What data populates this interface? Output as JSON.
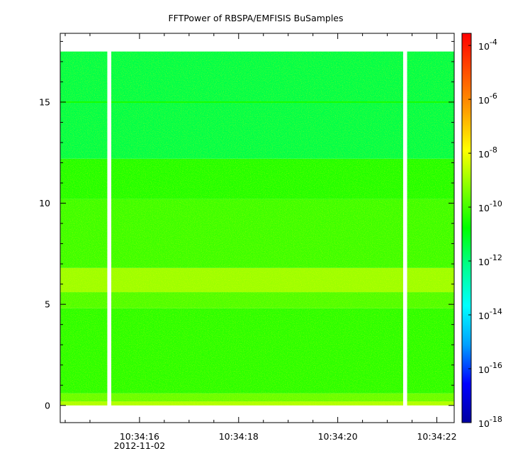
{
  "chart_data": {
    "type": "heatmap",
    "title": "FFTPower of RBSPA/EMFISIS  BuSamples",
    "xlabel": "",
    "ylabel": "",
    "x": {
      "range": [
        "10:34:14.40",
        "10:34:22.35"
      ],
      "major_ticks": [
        "10:34:16",
        "10:34:18",
        "10:34:20",
        "10:34:22"
      ],
      "minor_ticks": [
        "10:34:14.5",
        "10:34:15",
        "10:34:16.5",
        "10:34:17",
        "10:34:17.5",
        "10:34:18.5",
        "10:34:19",
        "10:34:19.5",
        "10:34:20.5",
        "10:34:21",
        "10:34:21.5"
      ],
      "date_label": "2012-11-02"
    },
    "y": {
      "range": [
        -0.85,
        18.4
      ],
      "major_ticks": [
        0,
        5,
        10,
        15
      ],
      "minor_ticks": [
        1,
        2,
        3,
        4,
        6,
        7,
        8,
        9,
        11,
        12,
        13,
        14,
        16,
        17,
        18
      ]
    },
    "data_extent": {
      "x_start": "10:34:14.40",
      "x_end": "10:34:22.35",
      "y_min": 0.0,
      "y_max": 17.5
    },
    "gaps": [
      {
        "from": "10:34:15.35",
        "to": "10:34:15.43"
      },
      {
        "from": "10:34:21.32",
        "to": "10:34:21.40"
      }
    ],
    "spectrum_bands_log10_power": [
      {
        "from": 0.0,
        "to": 0.2,
        "log10": -8.8
      },
      {
        "from": 0.2,
        "to": 0.6,
        "log10": -9.6
      },
      {
        "from": 0.6,
        "to": 4.8,
        "log10": -10.3
      },
      {
        "from": 4.8,
        "to": 5.6,
        "log10": -9.9
      },
      {
        "from": 5.6,
        "to": 6.8,
        "log10": -9.0
      },
      {
        "from": 6.8,
        "to": 10.2,
        "log10": -10.1
      },
      {
        "from": 10.2,
        "to": 12.2,
        "log10": -10.4
      },
      {
        "from": 12.2,
        "to": 17.5,
        "log10": -11.5
      }
    ],
    "spectral_line": {
      "freq": 15.0,
      "log10": -10.5
    },
    "colorbar": {
      "scale": "log",
      "range_log10": [
        -18,
        -3.55
      ],
      "tick_exponents": [
        -18,
        -16,
        -14,
        -12,
        -10,
        -8,
        -6,
        -4
      ],
      "tick_base": "10",
      "colors": [
        "#0000a0",
        "#0000ff",
        "#00a0ff",
        "#00ffff",
        "#00ff90",
        "#00ff00",
        "#80ff00",
        "#ffff00",
        "#ffa000",
        "#ff5000",
        "#ff0000"
      ]
    },
    "grid": false,
    "legend": "none"
  }
}
